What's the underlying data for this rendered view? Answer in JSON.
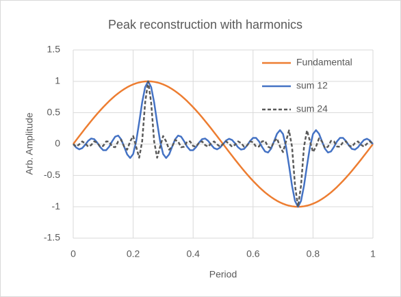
{
  "chart_data": {
    "type": "line",
    "title": "Peak reconstruction with harmonics",
    "x_label": "Period",
    "y_label": "Arb. Amplitude",
    "x": [
      0,
      0.01,
      0.02,
      0.03,
      0.04,
      0.05,
      0.06,
      0.07,
      0.08,
      0.09,
      0.1,
      0.11,
      0.12,
      0.13,
      0.14,
      0.15,
      0.16,
      0.17,
      0.18,
      0.19,
      0.2,
      0.21,
      0.22,
      0.23,
      0.24,
      0.25,
      0.26,
      0.27,
      0.28,
      0.29,
      0.3,
      0.31,
      0.32,
      0.33,
      0.34,
      0.35,
      0.36,
      0.37,
      0.38,
      0.39,
      0.4,
      0.41,
      0.42,
      0.43,
      0.44,
      0.45,
      0.46,
      0.47,
      0.48,
      0.49,
      0.5,
      0.51,
      0.52,
      0.53,
      0.54,
      0.55,
      0.56,
      0.57,
      0.58,
      0.59,
      0.6,
      0.61,
      0.62,
      0.63,
      0.64,
      0.65,
      0.66,
      0.67,
      0.68,
      0.69,
      0.7,
      0.71,
      0.72,
      0.73,
      0.74,
      0.75,
      0.76,
      0.77,
      0.78,
      0.79,
      0.8,
      0.81,
      0.82,
      0.83,
      0.84,
      0.85,
      0.86,
      0.87,
      0.88,
      0.89,
      0.9,
      0.91,
      0.92,
      0.93,
      0.94,
      0.95,
      0.96,
      0.97,
      0.98,
      0.99,
      1
    ],
    "series": [
      {
        "name": "Fundamental",
        "color": "#ed7d31",
        "dash": false,
        "values": [
          0,
          0.063,
          0.125,
          0.187,
          0.249,
          0.309,
          0.368,
          0.426,
          0.482,
          0.536,
          0.588,
          0.637,
          0.685,
          0.729,
          0.771,
          0.809,
          0.844,
          0.876,
          0.905,
          0.93,
          0.951,
          0.969,
          0.982,
          0.992,
          0.998,
          1,
          0.998,
          0.992,
          0.982,
          0.969,
          0.951,
          0.93,
          0.905,
          0.876,
          0.844,
          0.809,
          0.771,
          0.729,
          0.685,
          0.637,
          0.588,
          0.536,
          0.482,
          0.426,
          0.368,
          0.309,
          0.249,
          0.187,
          0.125,
          0.063,
          0,
          -0.063,
          -0.125,
          -0.187,
          -0.249,
          -0.309,
          -0.368,
          -0.426,
          -0.482,
          -0.536,
          -0.588,
          -0.637,
          -0.685,
          -0.729,
          -0.771,
          -0.809,
          -0.844,
          -0.876,
          -0.905,
          -0.93,
          -0.951,
          -0.969,
          -0.982,
          -0.992,
          -0.998,
          -1,
          -0.998,
          -0.992,
          -0.982,
          -0.969,
          -0.951,
          -0.93,
          -0.905,
          -0.876,
          -0.844,
          -0.809,
          -0.771,
          -0.729,
          -0.685,
          -0.637,
          -0.588,
          -0.536,
          -0.482,
          -0.426,
          -0.368,
          -0.309,
          -0.249,
          -0.187,
          -0.125,
          -0.063,
          0
        ]
      },
      {
        "name": "sum 12",
        "color": "#4472c4",
        "dash": false,
        "values": [
          0,
          -0.057,
          -0.084,
          -0.065,
          -0.011,
          0.052,
          0.088,
          0.078,
          0.024,
          -0.048,
          -0.098,
          -0.098,
          -0.042,
          0.045,
          0.118,
          0.135,
          0.075,
          -0.043,
          -0.165,
          -0.222,
          -0.159,
          0.042,
          0.343,
          0.664,
          0.908,
          1,
          0.908,
          0.664,
          0.343,
          0.042,
          -0.159,
          -0.222,
          -0.165,
          -0.043,
          0.075,
          0.135,
          0.118,
          0.045,
          -0.042,
          -0.098,
          -0.098,
          -0.048,
          0.024,
          0.078,
          0.088,
          0.052,
          -0.011,
          -0.065,
          -0.084,
          -0.057,
          0,
          0.057,
          0.084,
          0.065,
          0.011,
          -0.052,
          -0.088,
          -0.078,
          -0.024,
          0.048,
          0.098,
          0.098,
          0.042,
          -0.045,
          -0.118,
          -0.135,
          -0.075,
          0.043,
          0.165,
          0.222,
          0.159,
          -0.042,
          -0.343,
          -0.664,
          -0.908,
          -1,
          -0.908,
          -0.664,
          -0.343,
          -0.042,
          0.159,
          0.222,
          0.165,
          0.043,
          -0.075,
          -0.135,
          -0.118,
          -0.045,
          0.042,
          0.098,
          0.098,
          0.048,
          -0.024,
          -0.078,
          -0.088,
          -0.052,
          0.011,
          0.065,
          0.084,
          0.057,
          0
        ]
      },
      {
        "name": "sum 24",
        "color": "#595959",
        "dash": true,
        "values": [
          0,
          -0.042,
          -0.005,
          0.042,
          0.011,
          -0.042,
          -0.016,
          0.042,
          0.023,
          -0.042,
          -0.03,
          0.042,
          0.039,
          -0.042,
          -0.05,
          0.042,
          0.066,
          -0.042,
          -0.089,
          0.042,
          0.128,
          -0.042,
          -0.218,
          0.042,
          0.662,
          1,
          0.662,
          0.042,
          -0.218,
          -0.042,
          0.128,
          0.042,
          -0.089,
          -0.042,
          0.066,
          0.042,
          -0.05,
          -0.042,
          0.039,
          0.042,
          -0.03,
          -0.042,
          0.023,
          0.042,
          -0.016,
          -0.042,
          0.011,
          0.042,
          -0.005,
          -0.042,
          0,
          0.042,
          0.005,
          -0.042,
          -0.011,
          0.042,
          0.016,
          -0.042,
          -0.023,
          0.042,
          0.03,
          -0.042,
          -0.039,
          0.042,
          0.05,
          -0.042,
          -0.066,
          0.042,
          0.089,
          -0.042,
          -0.128,
          0.042,
          0.218,
          -0.042,
          -0.662,
          -1,
          -0.662,
          -0.042,
          0.218,
          0.042,
          -0.128,
          -0.042,
          0.089,
          0.042,
          -0.066,
          -0.042,
          0.05,
          0.042,
          -0.039,
          -0.042,
          0.03,
          0.042,
          -0.023,
          -0.042,
          0.016,
          0.042,
          -0.011,
          -0.042,
          0.005,
          0.042,
          0
        ]
      }
    ],
    "xlim": [
      0,
      1
    ],
    "xticks": [
      0,
      0.2,
      0.4,
      0.6,
      0.8,
      1
    ],
    "ylim": [
      -1.5,
      1.5
    ],
    "yticks": [
      -1.5,
      -1,
      -0.5,
      0,
      0.5,
      1,
      1.5
    ],
    "grid": true,
    "legend": "upper right"
  }
}
